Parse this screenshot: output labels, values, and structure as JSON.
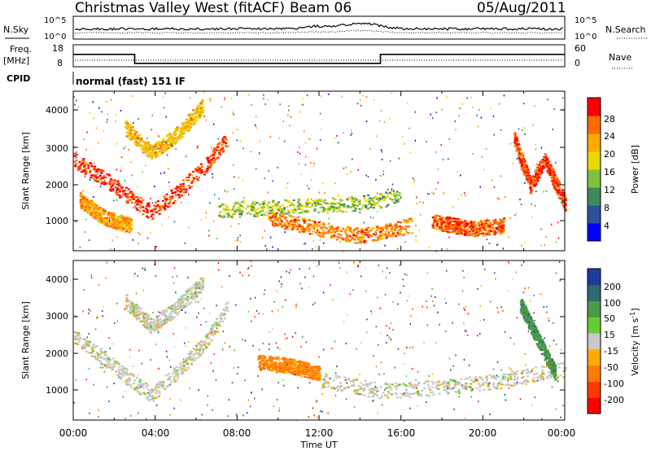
{
  "header": {
    "station": "Christmas Valley West (fitACF)",
    "beam": "Beam 06",
    "date": "05/Aug/2011"
  },
  "aux": {
    "nsky_label": "N.Sky",
    "nsky_ticks": [
      "10^5",
      "10^0"
    ],
    "nsearch_label": "N.Search",
    "nsearch_ticks": [
      "10^5",
      "10^0"
    ],
    "freq_label": "Freq.",
    "freq_unit": "[MHz]",
    "freq_ticks": [
      "18",
      "8"
    ],
    "nave_label": "Nave",
    "nave_ticks": [
      "60",
      "0"
    ],
    "cpid_label": "CPID",
    "cpid_text": "normal (fast) 151 IF"
  },
  "power_panel": {
    "ylabel": "Slant Range [km]",
    "yticks": [
      "4000",
      "3000",
      "2000",
      "1000"
    ],
    "colorbar_label": "Power [dB]",
    "colorbar_ticks": [
      "28",
      "24",
      "20",
      "16",
      "12",
      "8",
      "4"
    ]
  },
  "velocity_panel": {
    "ylabel": "Slant Range [km]",
    "yticks": [
      "4000",
      "3000",
      "2000",
      "1000"
    ],
    "colorbar_label": "Velocity [m s",
    "colorbar_label_sup": "-1",
    "colorbar_label_end": "]",
    "colorbar_ticks": [
      "200",
      "100",
      "50",
      "15",
      "-15",
      "-50",
      "-100",
      "-200"
    ]
  },
  "xaxis": {
    "label": "Time UT",
    "ticks": [
      "00:00",
      "04:00",
      "08:00",
      "12:00",
      "16:00",
      "20:00",
      "00:00"
    ]
  },
  "colors": {
    "power_scale": [
      "#ff0000",
      "#ff6a00",
      "#ffaa00",
      "#e8d800",
      "#7fc040",
      "#3c8a5a",
      "#2f4ea0",
      "#0000ff"
    ],
    "velocity_scale": [
      "#1f3c9c",
      "#2e6a70",
      "#4a9a4a",
      "#66cc33",
      "#c8c8c8",
      "#ffaa00",
      "#ff7a00",
      "#ff3a00",
      "#ff0000"
    ]
  },
  "chart_data": [
    {
      "type": "line",
      "name": "frequency",
      "x": [
        0,
        3,
        3,
        15,
        15,
        24
      ],
      "y": [
        14,
        14,
        9,
        9,
        14,
        14
      ],
      "ylim": [
        8,
        18
      ],
      "xlim": [
        0,
        24
      ]
    },
    {
      "type": "heatmap",
      "name": "power",
      "xlim": [
        0,
        24
      ],
      "ylim": [
        180,
        4600
      ],
      "zlim": [
        0,
        30
      ],
      "bands": [
        {
          "x": [
            0,
            1.5,
            3,
            3.8,
            5,
            6.5,
            7.5
          ],
          "y": [
            2700,
            2200,
            1550,
            1250,
            1800,
            2600,
            3300
          ],
          "z": 28
        },
        {
          "x": [
            0.3,
            1.5,
            2.8
          ],
          "y": [
            1600,
            1100,
            900
          ],
          "z": 22
        },
        {
          "x": [
            2.5,
            3.8,
            5,
            6.3
          ],
          "y": [
            3600,
            2900,
            3400,
            4200
          ],
          "z": 20
        },
        {
          "x": [
            7,
            10,
            14,
            16
          ],
          "y": [
            1300,
            1400,
            1500,
            1700
          ],
          "z": 14
        },
        {
          "x": [
            9.5,
            12,
            14,
            16.5
          ],
          "y": [
            1100,
            800,
            600,
            900
          ],
          "z": 24
        },
        {
          "x": [
            17.5,
            19.5,
            21
          ],
          "y": [
            1000,
            800,
            900
          ],
          "z": 26
        },
        {
          "x": [
            21.5,
            22.3,
            23,
            24
          ],
          "y": [
            3300,
            2000,
            2700,
            1500
          ],
          "z": 28
        }
      ]
    },
    {
      "type": "heatmap",
      "name": "velocity",
      "xlim": [
        0,
        24
      ],
      "ylim": [
        180,
        4600
      ],
      "zlim": [
        -250,
        250
      ],
      "bands": [
        {
          "x": [
            0,
            1.5,
            3,
            3.8,
            5,
            6.5,
            7.5
          ],
          "y": [
            2500,
            1900,
            1200,
            900,
            1500,
            2400,
            3300
          ],
          "z": 0
        },
        {
          "x": [
            2.5,
            3.8,
            5,
            6.3
          ],
          "y": [
            3500,
            2800,
            3300,
            4000
          ],
          "z": 0
        },
        {
          "x": [
            9,
            10.5,
            12
          ],
          "y": [
            1800,
            1700,
            1500
          ],
          "z": -60
        },
        {
          "x": [
            12,
            15,
            18,
            21,
            24
          ],
          "y": [
            1300,
            1000,
            1100,
            1300,
            1600
          ],
          "z": 0
        },
        {
          "x": [
            21.8,
            23.5
          ],
          "y": [
            3400,
            1500
          ],
          "z": 60
        }
      ]
    }
  ]
}
